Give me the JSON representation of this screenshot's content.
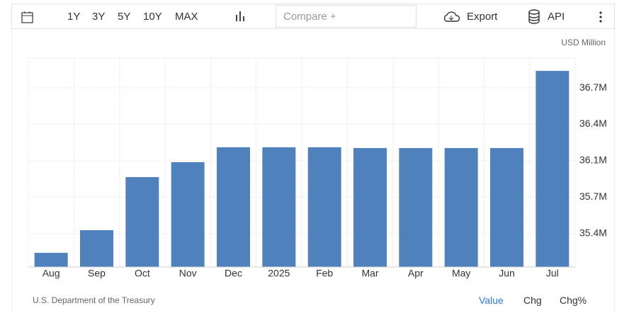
{
  "toolbar": {
    "ranges": [
      "1Y",
      "3Y",
      "5Y",
      "10Y",
      "MAX"
    ],
    "compare": "Compare +",
    "export": "Export",
    "api": "API"
  },
  "chart_data": {
    "type": "bar",
    "unit": "USD Million",
    "source": "U.S. Department of the Treasury",
    "categories": [
      "Aug",
      "Sep",
      "Oct",
      "Nov",
      "Dec",
      "2025",
      "Feb",
      "Mar",
      "Apr",
      "May",
      "Jun",
      "Jul"
    ],
    "values": [
      35225000,
      35432000,
      35917000,
      36053000,
      36189000,
      36189000,
      36189000,
      36182000,
      36182000,
      36182000,
      36182000,
      36887000
    ],
    "color": "#4f81bd",
    "ylim": [
      35096000,
      37004000
    ],
    "yticks": [
      {
        "value": 35400000,
        "label": "35.4M"
      },
      {
        "value": 35733000,
        "label": "35.7M"
      },
      {
        "value": 36066000,
        "label": "36.1M"
      },
      {
        "value": 36399000,
        "label": "36.4M"
      },
      {
        "value": 36732000,
        "label": "36.7M"
      }
    ],
    "grid": true
  },
  "footer": {
    "tabs": [
      "Value",
      "Chg",
      "Chg%"
    ]
  }
}
